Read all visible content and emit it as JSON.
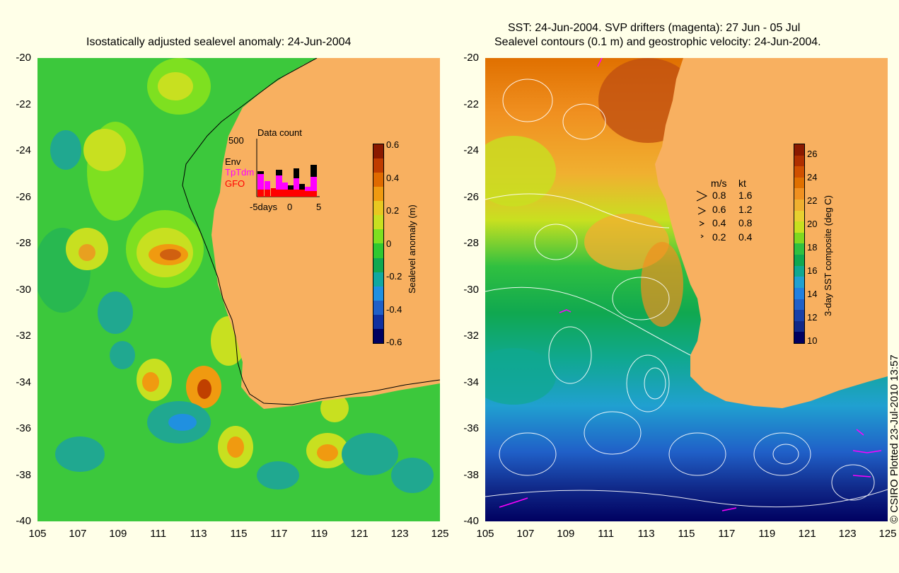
{
  "left_panel": {
    "title": "Isostatically adjusted sealevel anomaly: 24-Jun-2004",
    "colorbar": {
      "label": "Sealevel anomaly (m)",
      "ticks": [
        "0.6",
        "0.4",
        "0.2",
        "0",
        "-0.2",
        "-0.4",
        "-0.6"
      ],
      "colors": [
        "#8b1a00",
        "#c03c00",
        "#e06a00",
        "#f09a10",
        "#e8c820",
        "#c8e020",
        "#7ee020",
        "#30c830",
        "#10a850",
        "#10a8a0",
        "#2090e0",
        "#2060c8",
        "#1030a0",
        "#000060"
      ]
    },
    "inset": {
      "title": "Data count",
      "ymax": "500",
      "legend": [
        "Env",
        "TpTdm",
        "GFO"
      ],
      "legend_colors": [
        "#000000",
        "#ff00ff",
        "#ff0000"
      ],
      "xticks": [
        "-5days",
        "0",
        "5"
      ]
    }
  },
  "right_panel": {
    "title_line1": "SST: 24-Jun-2004. SVP drifters (magenta): 27 Jun - 05 Jul",
    "title_line2": "Sealevel contours (0.1 m) and geostrophic velocity: 24-Jun-2004.",
    "colorbar": {
      "label": "3-day SST composite (deg C)",
      "ticks": [
        "26",
        "24",
        "22",
        "20",
        "18",
        "16",
        "14",
        "12",
        "10"
      ],
      "colors": [
        "#8b1a00",
        "#b03000",
        "#d05000",
        "#e07000",
        "#f09020",
        "#f0b030",
        "#e8d030",
        "#c8e020",
        "#80d820",
        "#30c040",
        "#10a850",
        "#10a890",
        "#20a0d0",
        "#2080e0",
        "#2060c8",
        "#1840a8",
        "#102888",
        "#000060"
      ]
    },
    "velocity_legend": {
      "headers": [
        "m/s",
        "kt"
      ],
      "rows": [
        [
          "0.8",
          "1.6"
        ],
        [
          "0.6",
          "1.2"
        ],
        [
          "0.4",
          "0.8"
        ],
        [
          "0.2",
          "0.4"
        ]
      ]
    }
  },
  "axes": {
    "y_ticks": [
      "-20",
      "-22",
      "-24",
      "-26",
      "-28",
      "-30",
      "-32",
      "-34",
      "-36",
      "-38",
      "-40"
    ],
    "x_ticks": [
      "105",
      "107",
      "109",
      "111",
      "113",
      "115",
      "117",
      "119",
      "121",
      "123",
      "125"
    ]
  },
  "credit": "© CSIRO Plotted 23-Jul-2010 13:57",
  "colors": {
    "land": "#f8b060",
    "background": "#ffffe8"
  }
}
